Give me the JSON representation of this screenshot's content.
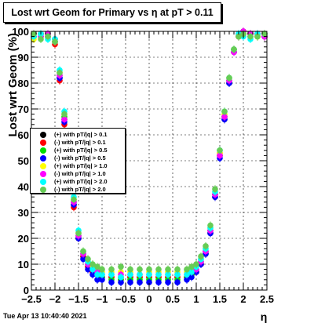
{
  "chart_data": {
    "type": "scatter",
    "title": "Lost wrt Geom for Primary vs   η at pT > 0.11",
    "xlabel": "η",
    "ylabel": "Lost wrt Geom (%)",
    "xlim": [
      -2.5,
      2.5
    ],
    "ylim": [
      0,
      100
    ],
    "x_ticks": [
      -2.5,
      -2,
      -1.5,
      -1,
      -0.5,
      0,
      0.5,
      1,
      1.5,
      2,
      2.5
    ],
    "x_tick_labels": [
      "−2.5",
      "−2",
      "−1.5",
      "−1",
      "−0.5",
      "0",
      "0.5",
      "1",
      "1.5",
      "2",
      "2.5"
    ],
    "y_ticks": [
      0,
      10,
      20,
      30,
      40,
      50,
      60,
      70,
      80,
      90,
      100
    ],
    "y_tick_labels": [
      "0",
      "10",
      "20",
      "30",
      "40",
      "50",
      "60",
      "70",
      "80",
      "90",
      "100"
    ],
    "grid": true,
    "legend_position": "left-middle",
    "series": [
      {
        "name": "(+) with pT/|q| > 0.1",
        "color": "#000000",
        "x": [
          -2.45,
          -2.3,
          -2.15,
          -2.0,
          -1.9,
          -1.8,
          -1.7,
          -1.6,
          -1.5,
          -1.4,
          -1.3,
          -1.2,
          -1.1,
          -1.0,
          -0.8,
          -0.6,
          -0.4,
          -0.2,
          0.0,
          0.2,
          0.4,
          0.6,
          0.8,
          0.9,
          1.0,
          1.1,
          1.2,
          1.3,
          1.4,
          1.5,
          1.6,
          1.7,
          1.8,
          1.9,
          2.0,
          2.15,
          2.3,
          2.45
        ],
        "y": [
          98,
          99,
          98,
          96,
          82,
          66,
          50,
          33,
          20,
          13,
          9,
          7,
          6,
          5,
          5,
          5,
          5,
          5,
          5,
          5,
          5,
          5,
          5,
          6,
          7,
          10,
          14,
          22,
          36,
          52,
          66,
          80,
          93,
          98,
          100,
          99,
          99,
          98
        ]
      },
      {
        "name": "(-) with pT/|q| > 0.1",
        "color": "#ff0000",
        "x": [
          -2.45,
          -2.3,
          -2.15,
          -2.0,
          -1.9,
          -1.8,
          -1.7,
          -1.6,
          -1.5,
          -1.4,
          -1.3,
          -1.2,
          -1.1,
          -1.0,
          -0.8,
          -0.6,
          -0.4,
          -0.2,
          0.0,
          0.2,
          0.4,
          0.6,
          0.8,
          0.9,
          1.0,
          1.1,
          1.2,
          1.3,
          1.4,
          1.5,
          1.6,
          1.7,
          1.8,
          1.9,
          2.0,
          2.15,
          2.3,
          2.45
        ],
        "y": [
          99,
          99,
          98,
          95,
          81,
          64,
          48,
          32,
          20,
          13,
          9,
          7,
          6,
          5,
          5,
          4,
          5,
          5,
          5,
          5,
          5,
          5,
          5,
          6,
          7,
          10,
          15,
          23,
          37,
          53,
          67,
          81,
          92,
          98,
          99,
          99,
          98,
          98
        ]
      },
      {
        "name": "(+) with pT/|q| > 0.5",
        "color": "#00dd00",
        "x": [
          -2.45,
          -2.3,
          -2.15,
          -2.0,
          -1.9,
          -1.8,
          -1.7,
          -1.6,
          -1.5,
          -1.4,
          -1.3,
          -1.2,
          -1.1,
          -1.0,
          -0.8,
          -0.6,
          -0.4,
          -0.2,
          0.0,
          0.2,
          0.4,
          0.6,
          0.8,
          0.9,
          1.0,
          1.1,
          1.2,
          1.3,
          1.4,
          1.5,
          1.6,
          1.7,
          1.8,
          1.9,
          2.0,
          2.15,
          2.3,
          2.45
        ],
        "y": [
          99,
          98,
          99,
          97,
          83,
          67,
          51,
          34,
          21,
          14,
          10,
          8,
          6,
          5,
          4,
          4,
          4,
          4,
          4,
          4,
          4,
          4,
          5,
          6,
          8,
          11,
          15,
          23,
          37,
          52,
          67,
          81,
          93,
          99,
          100,
          99,
          98,
          99
        ]
      },
      {
        "name": "(-) with pT/|q| > 0.5",
        "color": "#0000ff",
        "x": [
          -2.45,
          -2.3,
          -2.15,
          -2.0,
          -1.9,
          -1.8,
          -1.7,
          -1.6,
          -1.5,
          -1.4,
          -1.3,
          -1.2,
          -1.1,
          -1.0,
          -0.8,
          -0.6,
          -0.4,
          -0.2,
          0.0,
          0.2,
          0.4,
          0.6,
          0.8,
          0.9,
          1.0,
          1.1,
          1.2,
          1.3,
          1.4,
          1.5,
          1.6,
          1.7,
          1.8,
          1.9,
          2.0,
          2.15,
          2.3,
          2.45
        ],
        "y": [
          98,
          99,
          98,
          96,
          82,
          65,
          49,
          33,
          20,
          12,
          8,
          6,
          4,
          4,
          3,
          3,
          3,
          3,
          3,
          3,
          3,
          3,
          4,
          5,
          7,
          10,
          14,
          22,
          36,
          51,
          66,
          80,
          92,
          98,
          99,
          98,
          99,
          98
        ]
      },
      {
        "name": "(+) with pT/|q| > 1.0",
        "color": "#ffff00",
        "x": [
          -2.45,
          -2.3,
          -2.15,
          -2.0,
          -1.9,
          -1.8,
          -1.7,
          -1.6,
          -1.5,
          -1.4,
          -1.3,
          -1.2,
          -1.1,
          -1.0,
          -0.8,
          -0.6,
          -0.4,
          -0.2,
          0.0,
          0.2,
          0.4,
          0.6,
          0.8,
          0.9,
          1.0,
          1.1,
          1.2,
          1.3,
          1.4,
          1.5,
          1.6,
          1.7,
          1.8,
          1.9,
          2.0,
          2.15,
          2.3,
          2.45
        ],
        "y": [
          97,
          99,
          98,
          96,
          84,
          68,
          52,
          35,
          22,
          15,
          11,
          9,
          8,
          7,
          7,
          7,
          7,
          6,
          7,
          7,
          7,
          7,
          7,
          8,
          9,
          12,
          16,
          24,
          38,
          53,
          68,
          82,
          93,
          98,
          99,
          99,
          98,
          99
        ]
      },
      {
        "name": "(-) with pT/|q| > 1.0",
        "color": "#ff00ff",
        "x": [
          -2.45,
          -2.3,
          -2.15,
          -2.0,
          -1.9,
          -1.8,
          -1.7,
          -1.6,
          -1.5,
          -1.4,
          -1.3,
          -1.2,
          -1.1,
          -1.0,
          -0.8,
          -0.6,
          -0.4,
          -0.2,
          0.0,
          0.2,
          0.4,
          0.6,
          0.8,
          0.9,
          1.0,
          1.1,
          1.2,
          1.3,
          1.4,
          1.5,
          1.6,
          1.7,
          1.8,
          1.9,
          2.0,
          2.15,
          2.3,
          2.45
        ],
        "y": [
          99,
          98,
          99,
          97,
          83,
          66,
          50,
          34,
          21,
          14,
          10,
          8,
          7,
          6,
          6,
          6,
          6,
          6,
          6,
          6,
          6,
          6,
          6,
          7,
          8,
          11,
          15,
          23,
          37,
          52,
          67,
          81,
          92,
          99,
          100,
          99,
          99,
          98
        ]
      },
      {
        "name": "(+) with pT/|q| > 2.0",
        "color": "#00ffff",
        "x": [
          -2.45,
          -2.3,
          -2.15,
          -2.0,
          -1.9,
          -1.8,
          -1.7,
          -1.6,
          -1.5,
          -1.4,
          -1.3,
          -1.2,
          -1.1,
          -1.0,
          -0.8,
          -0.6,
          -0.4,
          -0.2,
          0.0,
          0.2,
          0.4,
          0.6,
          0.8,
          0.9,
          1.0,
          1.1,
          1.2,
          1.3,
          1.4,
          1.5,
          1.6,
          1.7,
          1.8,
          1.9,
          2.0,
          2.15,
          2.3,
          2.45
        ],
        "y": [
          98,
          99,
          97,
          97,
          85,
          69,
          53,
          36,
          23,
          15,
          11,
          8,
          6,
          6,
          6,
          5,
          6,
          6,
          6,
          6,
          6,
          6,
          6,
          7,
          9,
          12,
          16,
          24,
          38,
          54,
          69,
          82,
          93,
          99,
          98,
          97,
          99,
          99
        ]
      },
      {
        "name": "(-) with pT/|q| > 2.0",
        "color": "#66cc55",
        "x": [
          -2.45,
          -2.3,
          -2.15,
          -2.0,
          -1.9,
          -1.8,
          -1.7,
          -1.6,
          -1.5,
          -1.4,
          -1.3,
          -1.2,
          -1.1,
          -1.0,
          -0.8,
          -0.6,
          -0.4,
          -0.2,
          0.0,
          0.2,
          0.4,
          0.6,
          0.8,
          0.9,
          1.0,
          1.1,
          1.2,
          1.3,
          1.4,
          1.5,
          1.6,
          1.7,
          1.8,
          1.9,
          2.0,
          2.15,
          2.3,
          2.45
        ],
        "y": [
          99,
          97,
          98,
          96,
          84,
          68,
          52,
          35,
          22,
          15,
          12,
          10,
          9,
          8,
          8,
          9,
          8,
          8,
          8,
          8,
          8,
          8,
          8,
          9,
          10,
          13,
          17,
          25,
          39,
          54,
          69,
          82,
          93,
          98,
          99,
          98,
          98,
          99
        ]
      }
    ]
  },
  "footer": {
    "timestamp": "Tue Apr 13 10:40:40 2021"
  }
}
